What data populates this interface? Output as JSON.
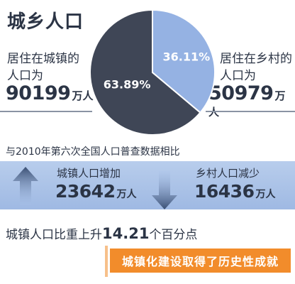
{
  "title": "城乡人口",
  "urban": {
    "label_line1": "居住在城镇的",
    "label_line2": "人口为",
    "value": "90199",
    "unit": "万人",
    "percent_label": "63.89%"
  },
  "rural": {
    "label_line1": "居住在乡村的",
    "label_line2": "人口为",
    "value": "50979",
    "unit": "万人",
    "percent_label": "36.11%"
  },
  "comparison": {
    "heading": "与2010年第六次全国人口普查数据相比",
    "urban_change": {
      "label": "城镇人口增加",
      "value": "23642",
      "unit": "万人"
    },
    "rural_change": {
      "label": "乡村人口减少",
      "value": "16436",
      "unit": "万人"
    },
    "rise_prefix": "城镇人口比重上升",
    "rise_value": "14.21",
    "rise_suffix": "个百分点"
  },
  "banner": {
    "text": "城镇化建设取得了历史性成就"
  },
  "colors": {
    "urban": "#3f4656",
    "rural": "#95b2e3",
    "band": "#a9c2ea",
    "accent": "#f28c2b"
  },
  "icons": {
    "increase": "arrow-up-icon",
    "decrease": "arrow-down-icon"
  },
  "chart_data": {
    "type": "pie",
    "categories": [
      "居住在城镇的人口",
      "居住在乡村的人口"
    ],
    "values": [
      63.89,
      36.11
    ],
    "absolute_values_wan": [
      90199,
      50979
    ],
    "title": "城乡人口"
  }
}
